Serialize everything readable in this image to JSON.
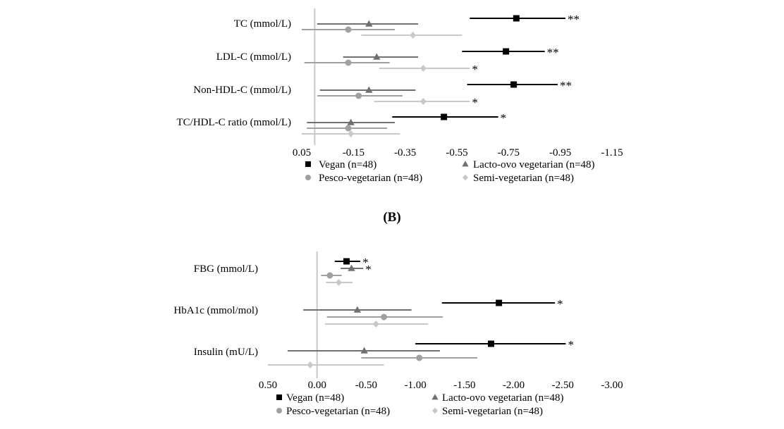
{
  "figure": {
    "panel_b_label": "(B)",
    "marker_colors": {
      "Vegan (n=48)": "#000000",
      "Lacto-ovo vegetarian (n=48)": "#707070",
      "Pesco-vegetarian (n=48)": "#a0a0a0",
      "Semi-vegetarian (n=48)": "#c8c8c8"
    },
    "marker_shapes": {
      "Vegan (n=48)": "square",
      "Lacto-ovo vegetarian (n=48)": "triangle",
      "Pesco-vegetarian (n=48)": "circle",
      "Semi-vegetarian (n=48)": "diamond"
    }
  },
  "chart_data": [
    {
      "type": "forest",
      "axis": {
        "xlim": [
          0.05,
          -1.15
        ],
        "ticks": [
          0.05,
          -0.15,
          -0.35,
          -0.55,
          -0.75,
          -0.95,
          -1.15
        ],
        "tick_labels": [
          "0.05",
          "-0.15",
          "-0.35",
          "-0.55",
          "-0.75",
          "-0.95",
          "-1.15"
        ],
        "reference_line": 0
      },
      "legend": [
        "Vegan (n=48)",
        "Lacto-ovo vegetarian (n=48)",
        "Pesco-vegetarian (n=48)",
        "Semi-vegetarian (n=48)"
      ],
      "categories": [
        "TC (mmol/L)",
        "LDL-C (mmol/L)",
        "Non-HDL-C (mmol/L)",
        "TC/HDL-C ratio (mmol/L)"
      ],
      "series": [
        {
          "name": "Vegan (n=48)",
          "points": [
            {
              "estimate": -0.78,
              "ci": [
                -0.6,
                -0.97
              ],
              "sig": "**"
            },
            {
              "estimate": -0.74,
              "ci": [
                -0.57,
                -0.89
              ],
              "sig": "**"
            },
            {
              "estimate": -0.77,
              "ci": [
                -0.59,
                -0.94
              ],
              "sig": "**"
            },
            {
              "estimate": -0.5,
              "ci": [
                -0.3,
                -0.71
              ],
              "sig": "*"
            }
          ]
        },
        {
          "name": "Lacto-ovo vegetarian (n=48)",
          "points": [
            {
              "estimate": -0.21,
              "ci": [
                -0.01,
                -0.4
              ],
              "sig": ""
            },
            {
              "estimate": -0.24,
              "ci": [
                -0.11,
                -0.4
              ],
              "sig": ""
            },
            {
              "estimate": -0.21,
              "ci": [
                -0.02,
                -0.39
              ],
              "sig": ""
            },
            {
              "estimate": -0.14,
              "ci": [
                0.03,
                -0.31
              ],
              "sig": ""
            }
          ]
        },
        {
          "name": "Pesco-vegetarian (n=48)",
          "points": [
            {
              "estimate": -0.13,
              "ci": [
                0.05,
                -0.31
              ],
              "sig": ""
            },
            {
              "estimate": -0.13,
              "ci": [
                0.04,
                -0.29
              ],
              "sig": ""
            },
            {
              "estimate": -0.17,
              "ci": [
                -0.01,
                -0.34
              ],
              "sig": ""
            },
            {
              "estimate": -0.13,
              "ci": [
                0.03,
                -0.28
              ],
              "sig": ""
            }
          ]
        },
        {
          "name": "Semi-vegetarian (n=48)",
          "points": [
            {
              "estimate": -0.38,
              "ci": [
                -0.18,
                -0.57
              ],
              "sig": ""
            },
            {
              "estimate": -0.42,
              "ci": [
                -0.25,
                -0.6
              ],
              "sig": "*"
            },
            {
              "estimate": -0.42,
              "ci": [
                -0.23,
                -0.6
              ],
              "sig": "*"
            },
            {
              "estimate": -0.14,
              "ci": [
                0.05,
                -0.33
              ],
              "sig": ""
            }
          ]
        }
      ]
    },
    {
      "type": "forest",
      "axis": {
        "xlim": [
          0.5,
          -3.0
        ],
        "ticks": [
          0.5,
          0.0,
          -0.5,
          -1.0,
          -1.5,
          -2.0,
          -2.5,
          -3.0
        ],
        "tick_labels": [
          "0.50",
          "0.00",
          "-0.50",
          "-1.00",
          "-1.50",
          "-2.00",
          "-2.50",
          "-3.00"
        ],
        "reference_line": 0
      },
      "legend": [
        "Vegan (n=48)",
        "Lacto-ovo vegetarian (n=48)",
        "Pesco-vegetarian (n=48)",
        "Semi-vegetarian (n=48)"
      ],
      "categories": [
        "FBG (mmol/L)",
        "HbA1c (mmol/mol)",
        "Insulin (mU/L)"
      ],
      "series": [
        {
          "name": "Vegan (n=48)",
          "points": [
            {
              "estimate": -0.3,
              "ci": [
                -0.18,
                -0.44
              ],
              "sig": "*"
            },
            {
              "estimate": -1.85,
              "ci": [
                -1.27,
                -2.42
              ],
              "sig": "*"
            },
            {
              "estimate": -1.77,
              "ci": [
                -1.0,
                -2.53
              ],
              "sig": "*"
            }
          ]
        },
        {
          "name": "Lacto-ovo vegetarian (n=48)",
          "points": [
            {
              "estimate": -0.35,
              "ci": [
                -0.24,
                -0.47
              ],
              "sig": "*"
            },
            {
              "estimate": -0.41,
              "ci": [
                0.14,
                -0.96
              ],
              "sig": ""
            },
            {
              "estimate": -0.48,
              "ci": [
                0.3,
                -1.25
              ],
              "sig": ""
            }
          ]
        },
        {
          "name": "Pesco-vegetarian (n=48)",
          "points": [
            {
              "estimate": -0.13,
              "ci": [
                -0.04,
                -0.25
              ],
              "sig": ""
            },
            {
              "estimate": -0.68,
              "ci": [
                -0.1,
                -1.28
              ],
              "sig": ""
            },
            {
              "estimate": -1.04,
              "ci": [
                -0.45,
                -1.63
              ],
              "sig": ""
            }
          ]
        },
        {
          "name": "Semi-vegetarian (n=48)",
          "points": [
            {
              "estimate": -0.22,
              "ci": [
                -0.09,
                -0.36
              ],
              "sig": ""
            },
            {
              "estimate": -0.6,
              "ci": [
                -0.08,
                -1.13
              ],
              "sig": ""
            },
            {
              "estimate": 0.07,
              "ci": [
                0.5,
                -0.68
              ],
              "sig": ""
            }
          ]
        }
      ]
    }
  ]
}
